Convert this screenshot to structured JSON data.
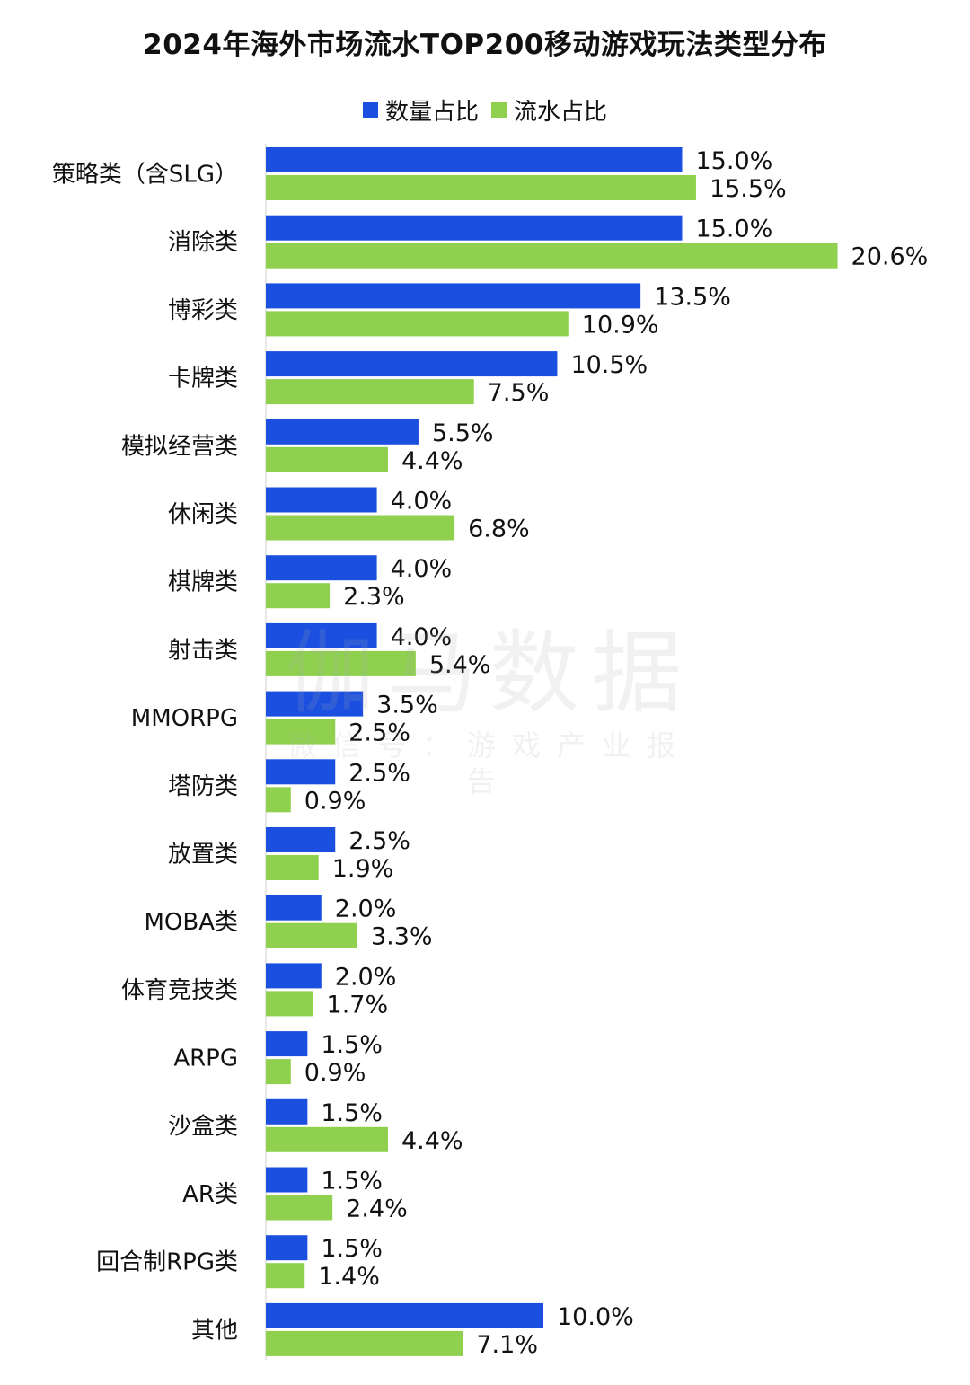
{
  "chart_data": {
    "type": "bar",
    "orientation": "horizontal",
    "title": "2024年海外市场流水TOP200移动游戏玩法类型分布",
    "categories": [
      "策略类（含SLG）",
      "消除类",
      "博彩类",
      "卡牌类",
      "模拟经营类",
      "休闲类",
      "棋牌类",
      "射击类",
      "MMORPG",
      "塔防类",
      "放置类",
      "MOBA类",
      "体育竞技类",
      "ARPG",
      "沙盒类",
      "AR类",
      "回合制RPG类",
      "其他"
    ],
    "series": [
      {
        "name": "数量占比",
        "color": "#1b4fe0",
        "values": [
          15.0,
          15.0,
          13.5,
          10.5,
          5.5,
          4.0,
          4.0,
          4.0,
          3.5,
          2.5,
          2.5,
          2.0,
          2.0,
          1.5,
          1.5,
          1.5,
          1.5,
          10.0
        ],
        "labels": [
          "15.0%",
          "15.0%",
          "13.5%",
          "10.5%",
          "5.5%",
          "4.0%",
          "4.0%",
          "4.0%",
          "3.5%",
          "2.5%",
          "2.5%",
          "2.0%",
          "2.0%",
          "1.5%",
          "1.5%",
          "1.5%",
          "1.5%",
          "10.0%"
        ]
      },
      {
        "name": "流水占比",
        "color": "#8fd14f",
        "values": [
          15.5,
          20.6,
          10.9,
          7.5,
          4.4,
          6.8,
          2.3,
          5.4,
          2.5,
          0.9,
          1.9,
          3.3,
          1.7,
          0.9,
          4.4,
          2.4,
          1.4,
          7.1
        ],
        "labels": [
          "15.5%",
          "20.6%",
          "10.9%",
          "7.5%",
          "4.4%",
          "6.8%",
          "2.3%",
          "5.4%",
          "2.5%",
          "0.9%",
          "1.9%",
          "3.3%",
          "1.7%",
          "0.9%",
          "4.4%",
          "2.4%",
          "1.4%",
          "7.1%"
        ]
      }
    ],
    "unit": "%",
    "xlim": [
      0,
      20.6
    ],
    "legend_position": "top-center",
    "grid": false
  },
  "watermark": {
    "main": "伽马数据",
    "sub": "微信号：游戏产业报告"
  }
}
